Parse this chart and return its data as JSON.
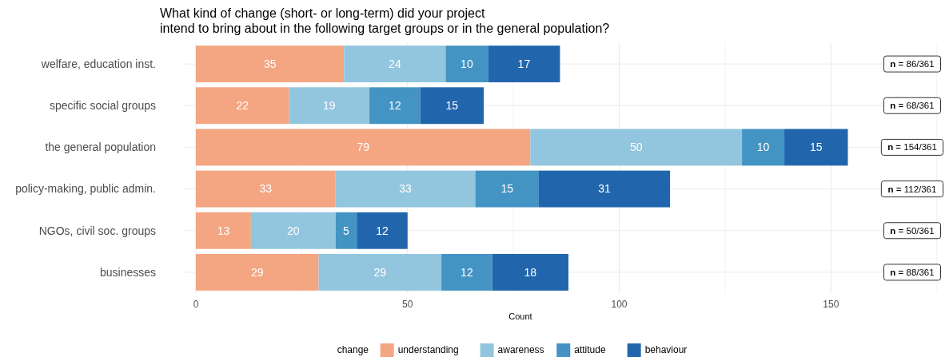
{
  "chart_data": {
    "type": "bar",
    "orientation": "horizontal",
    "stacked": true,
    "title": "What kind of change (short- or long-term) did your project\nintend to bring about in the following target groups or in the general population?",
    "xlabel": "Count",
    "legend_title": "change",
    "categories": [
      "welfare, education inst.",
      "specific social groups",
      "the general population",
      "policy-making, public admin.",
      "NGOs, civil soc. groups",
      "businesses"
    ],
    "series": [
      {
        "name": "understanding",
        "color": "#f4a582",
        "values": [
          35,
          22,
          79,
          33,
          13,
          29
        ]
      },
      {
        "name": "awareness",
        "color": "#92c5de",
        "values": [
          24,
          19,
          50,
          33,
          20,
          29
        ]
      },
      {
        "name": "attitude",
        "color": "#4393c3",
        "values": [
          10,
          12,
          10,
          15,
          5,
          12
        ]
      },
      {
        "name": "behaviour",
        "color": "#2166ac",
        "values": [
          17,
          15,
          15,
          31,
          12,
          18
        ]
      }
    ],
    "xlim": [
      0,
      176
    ],
    "xticks": [
      0,
      {
        "value": 25,
        "label": null
      },
      50,
      {
        "value": 75,
        "label": null
      },
      100,
      {
        "value": 125,
        "label": null
      },
      150,
      {
        "value": 175,
        "label": null
      }
    ],
    "grid": true,
    "legend": "bottom",
    "data_labels": true,
    "annotations": [
      "n = 86/361",
      "n = 68/361",
      "n = 154/361",
      "n = 112/361",
      "n = 50/361",
      "n = 88/361"
    ]
  }
}
